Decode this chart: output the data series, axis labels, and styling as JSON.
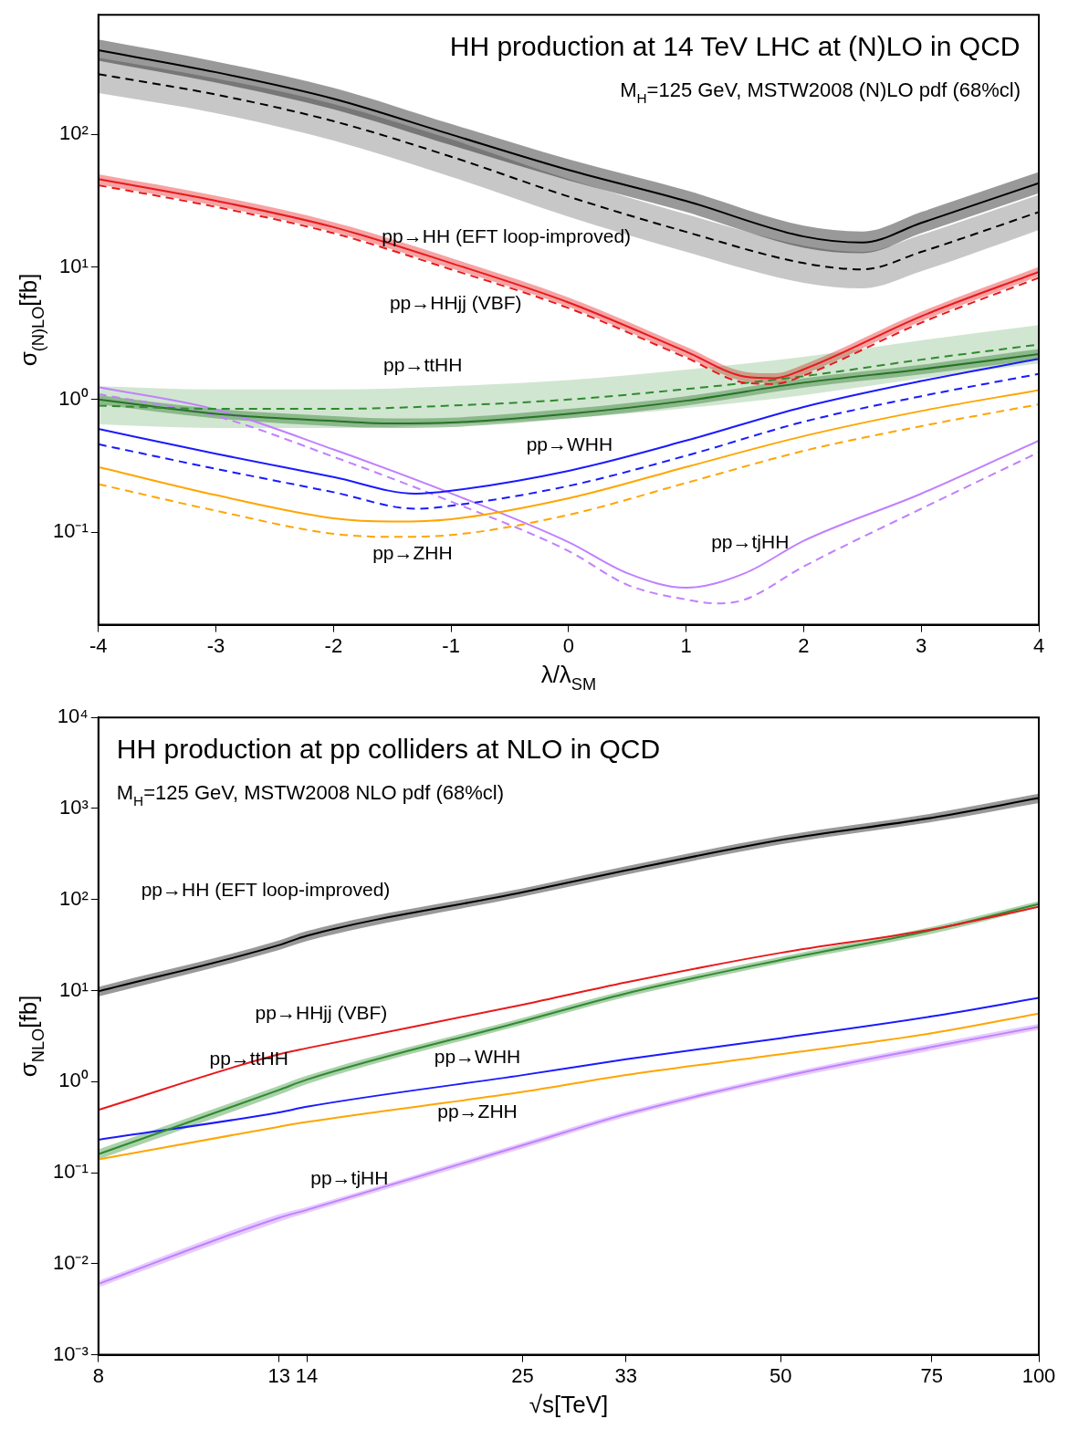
{
  "chart_data": [
    {
      "type": "line",
      "title": "HH production at 14 TeV LHC at (N)LO in QCD",
      "subtitle": "M$_{H}$=125 GeV, MSTW2008 (N)LO pdf (68%cl)",
      "xlabel": "λ/λ$_{SM}$",
      "ylabel": "σ$_{(N)LO}$[fb]",
      "log": "y",
      "xlim": [
        -4,
        4
      ],
      "xticks": [
        -4,
        -3,
        -2,
        -1,
        0,
        1,
        2,
        3,
        4
      ],
      "ylim": [
        0.02,
        800
      ],
      "yticks": [
        {
          "value": 0.1,
          "label": "10⁻¹"
        },
        {
          "value": 1,
          "label": "10⁰"
        },
        {
          "value": 10,
          "label": "10¹"
        },
        {
          "value": 100,
          "label": "10²"
        }
      ],
      "legend": false,
      "series": [
        {
          "color": "#000000",
          "line_style": "dashed",
          "x": [
            -4,
            -3,
            -2,
            -1,
            0,
            1,
            2,
            2.5,
            3,
            4
          ],
          "values": [
            285,
            200,
            126,
            68,
            34,
            18.4,
            10.7,
            9.6,
            13,
            26
          ],
          "lower": [
            205,
            145,
            90,
            48,
            24,
            13,
            7.6,
            6.9,
            9.3,
            19
          ],
          "upper": [
            380,
            265,
            170,
            92,
            46,
            25,
            14.5,
            13,
            17.5,
            35
          ]
        },
        {
          "color": "#000000",
          "line_style": "solid",
          "x": [
            -4,
            -3,
            -2,
            -1,
            0,
            1,
            2,
            2.5,
            3,
            4
          ],
          "values": [
            432,
            295,
            186,
            100,
            54,
            31.5,
            17,
            15.3,
            21.5,
            43
          ],
          "lower": [
            360,
            246,
            155,
            83,
            45,
            26,
            14,
            12.7,
            18,
            36
          ],
          "upper": [
            520,
            355,
            225,
            120,
            65,
            38,
            20.5,
            18.5,
            26,
            52
          ]
        },
        {
          "color": "#e8191b",
          "line_style": "dashed",
          "x": [
            -4,
            -3,
            -2,
            -1,
            0,
            1,
            1.5,
            1.75,
            2,
            3,
            4
          ],
          "values": [
            41.4,
            28.4,
            18,
            9.6,
            4.9,
            2.07,
            1.34,
            1.31,
            1.52,
            3.8,
            8.3
          ]
        },
        {
          "color": "#e8191b",
          "line_style": "solid",
          "x": [
            -4,
            -3,
            -2,
            -1,
            0,
            1,
            1.5,
            1.75,
            2,
            3,
            4
          ],
          "values": [
            46,
            31.6,
            20,
            10.7,
            5.4,
            2.3,
            1.49,
            1.45,
            1.69,
            4.25,
            9.2
          ],
          "lower": [
            42,
            29,
            18.4,
            9.8,
            5.0,
            2.1,
            1.37,
            1.33,
            1.55,
            3.9,
            8.5
          ],
          "upper": [
            50,
            34.5,
            21.8,
            11.7,
            5.9,
            2.5,
            1.62,
            1.58,
            1.84,
            4.6,
            10
          ]
        },
        {
          "color": "#2e8b2e",
          "line_style": "dashed",
          "x": [
            -4,
            -3,
            -2,
            -1,
            0,
            1,
            2,
            3,
            4
          ],
          "values": [
            0.9,
            0.85,
            0.85,
            0.9,
            1.0,
            1.2,
            1.5,
            2.0,
            2.6
          ],
          "lower": [
            0.65,
            0.61,
            0.61,
            0.65,
            0.72,
            0.86,
            1.08,
            1.44,
            1.87
          ],
          "upper": [
            1.26,
            1.19,
            1.19,
            1.26,
            1.4,
            1.68,
            2.1,
            2.8,
            3.64
          ]
        },
        {
          "color": "#267326",
          "line_style": "solid",
          "x": [
            -4,
            -3,
            -2,
            -1.5,
            -1,
            0,
            1,
            2,
            3,
            4
          ],
          "values": [
            1.0,
            0.78,
            0.69,
            0.66,
            0.67,
            0.78,
            0.98,
            1.34,
            1.69,
            2.2
          ],
          "lower": [
            0.92,
            0.72,
            0.63,
            0.61,
            0.62,
            0.72,
            0.9,
            1.23,
            1.55,
            2.0
          ],
          "upper": [
            1.08,
            0.85,
            0.75,
            0.72,
            0.73,
            0.85,
            1.06,
            1.45,
            1.83,
            2.4
          ]
        },
        {
          "color": "#1a1aff",
          "line_style": "dashed",
          "x": [
            -4,
            -3,
            -2,
            -1.3,
            -1,
            0,
            1,
            2,
            3,
            4
          ],
          "values": [
            0.46,
            0.3,
            0.2,
            0.15,
            0.158,
            0.223,
            0.377,
            0.68,
            1.06,
            1.56
          ]
        },
        {
          "color": "#1a1aff",
          "line_style": "solid",
          "x": [
            -4,
            -3,
            -2,
            -1.3,
            -1,
            0,
            1,
            2,
            3,
            4
          ],
          "values": [
            0.6,
            0.39,
            0.26,
            0.195,
            0.205,
            0.29,
            0.49,
            0.88,
            1.38,
            2.03
          ]
        },
        {
          "color": "#ffa500",
          "line_style": "dashed",
          "x": [
            -4,
            -3,
            -2,
            -1.5,
            -1,
            0,
            1,
            2,
            3,
            4
          ],
          "values": [
            0.23,
            0.145,
            0.097,
            0.092,
            0.095,
            0.135,
            0.235,
            0.41,
            0.63,
            0.92
          ]
        },
        {
          "color": "#ffa500",
          "line_style": "solid",
          "x": [
            -4,
            -3,
            -2,
            -1.5,
            -1,
            0,
            1,
            2,
            3,
            4
          ],
          "values": [
            0.31,
            0.19,
            0.127,
            0.12,
            0.125,
            0.18,
            0.31,
            0.53,
            0.82,
            1.18
          ]
        },
        {
          "color": "#c080ff",
          "line_style": "dashed",
          "x": [
            -4,
            -3,
            -2,
            -1,
            0,
            0.5,
            1,
            1.25,
            1.5,
            2,
            3,
            4
          ],
          "values": [
            1.1,
            0.75,
            0.37,
            0.17,
            0.072,
            0.04,
            0.031,
            0.029,
            0.031,
            0.055,
            0.15,
            0.4
          ]
        },
        {
          "color": "#c080ff",
          "line_style": "solid",
          "x": [
            -4,
            -3,
            -2,
            -1,
            0,
            0.5,
            1,
            1.5,
            2,
            3,
            4
          ],
          "values": [
            1.24,
            0.84,
            0.42,
            0.196,
            0.084,
            0.049,
            0.038,
            0.049,
            0.086,
            0.195,
            0.49
          ]
        }
      ],
      "annotations": [
        "pp→HH (EFT loop-improved)",
        "pp→HHjj (VBF)",
        "pp→ttHH",
        "pp→WHH",
        "pp→ZHH",
        "pp→tjHH"
      ]
    },
    {
      "type": "line",
      "title": "HH production at pp colliders at NLO in QCD",
      "subtitle": "M$_{H}$=125 GeV, MSTW2008 NLO pdf (68%cl)",
      "xlabel": "√s[TeV]",
      "ylabel": "σ$_{NLO}$[fb]",
      "log": "xy",
      "x": [
        8,
        13,
        14,
        25,
        33,
        50,
        75,
        100
      ],
      "xlim": [
        8,
        100
      ],
      "xticks": [
        8,
        13,
        14,
        25,
        33,
        50,
        75,
        100
      ],
      "ylim": [
        0.001,
        10000
      ],
      "yticks": [
        {
          "value": 0.001,
          "label": "10⁻³"
        },
        {
          "value": 0.01,
          "label": "10⁻²"
        },
        {
          "value": 0.1,
          "label": "10⁻¹"
        },
        {
          "value": 1,
          "label": "10⁰"
        },
        {
          "value": 10,
          "label": "10¹"
        },
        {
          "value": 100,
          "label": "10²"
        },
        {
          "value": 1000,
          "label": "10³"
        },
        {
          "value": 10000,
          "label": "10⁴"
        }
      ],
      "legend": false,
      "series": [
        {
          "color": "#000000",
          "line_style": "solid",
          "values": [
            9.8,
            31.6,
            40,
            120,
            209,
            450,
            790,
            1300
          ],
          "lower": [
            8.6,
            28,
            35,
            108,
            188,
            405,
            710,
            1150
          ],
          "upper": [
            11,
            35.5,
            45,
            133,
            232,
            500,
            880,
            1450
          ]
        },
        {
          "color": "#e8191b",
          "line_style": "solid",
          "values": [
            0.49,
            2.0,
            2.33,
            7.0,
            12.3,
            26,
            47,
            83
          ]
        },
        {
          "color": "#2e8b2e",
          "line_style": "solid",
          "values": [
            0.16,
            0.81,
            1.05,
            4.6,
            9.3,
            21.7,
            46,
            89
          ],
          "lower": [
            0.14,
            0.72,
            0.94,
            4.2,
            8.5,
            20,
            42,
            82
          ],
          "upper": [
            0.18,
            0.9,
            1.16,
            5.0,
            10.1,
            23.5,
            50,
            96
          ]
        },
        {
          "color": "#1a1aff",
          "line_style": "solid",
          "values": [
            0.23,
            0.46,
            0.53,
            1.18,
            1.76,
            3.0,
            5.2,
            8.3
          ]
        },
        {
          "color": "#ffa500",
          "line_style": "solid",
          "values": [
            0.14,
            0.32,
            0.36,
            0.77,
            1.18,
            2.0,
            3.4,
            5.6
          ]
        },
        {
          "color": "#c080ff",
          "line_style": "solid",
          "values": [
            0.006,
            0.032,
            0.039,
            0.2,
            0.44,
            1.12,
            2.4,
            4.0
          ],
          "lower": [
            0.0055,
            0.029,
            0.036,
            0.185,
            0.41,
            1.04,
            2.2,
            3.7
          ],
          "upper": [
            0.0065,
            0.035,
            0.042,
            0.215,
            0.47,
            1.2,
            2.6,
            4.3
          ]
        }
      ],
      "annotations": [
        "pp→HH (EFT loop-improved)",
        "pp→HHjj (VBF)",
        "pp→ttHH",
        "pp→WHH",
        "pp→ZHH",
        "pp→tjHH"
      ]
    }
  ]
}
